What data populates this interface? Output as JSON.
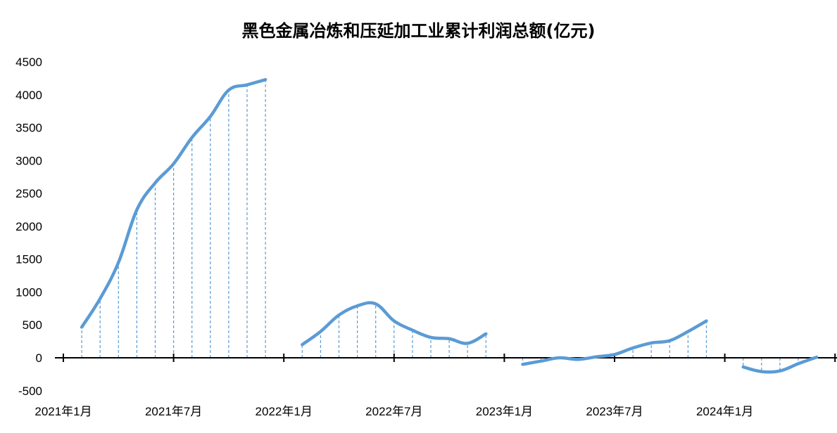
{
  "chart_data": {
    "type": "line",
    "title": "黑色金属冶炼和压延加工业累计利润总额(亿元)",
    "xlabel": "",
    "ylabel": "",
    "ylim": [
      -500,
      4500
    ],
    "yticks": [
      "4500",
      "4000",
      "3500",
      "3000",
      "2500",
      "2000",
      "1500",
      "1000",
      "500",
      "0",
      "-500"
    ],
    "xticks": [
      "2021年1月",
      "2021年7月",
      "2022年1月",
      "2022年7月",
      "2023年1月",
      "2023年7月",
      "2024年1月"
    ],
    "grid": false,
    "legend": "none",
    "line_color": "#5B9BD5",
    "drop_line_color": "#5B9BD5",
    "segments": [
      {
        "year": "2021",
        "months": [
          "2021-02",
          "2021-03",
          "2021-04",
          "2021-05",
          "2021-06",
          "2021-07",
          "2021-08",
          "2021-09",
          "2021-10",
          "2021-11",
          "2021-12"
        ],
        "values": [
          466,
          900,
          1450,
          2250,
          2660,
          2950,
          3350,
          3670,
          4070,
          4150,
          4230
        ]
      },
      {
        "year": "2022",
        "months": [
          "2022-02",
          "2022-03",
          "2022-04",
          "2022-05",
          "2022-06",
          "2022-07",
          "2022-08",
          "2022-09",
          "2022-10",
          "2022-11",
          "2022-12"
        ],
        "values": [
          200,
          400,
          650,
          790,
          820,
          560,
          420,
          310,
          290,
          220,
          365
        ]
      },
      {
        "year": "2023",
        "months": [
          "2023-02",
          "2023-03",
          "2023-04",
          "2023-05",
          "2023-06",
          "2023-07",
          "2023-08",
          "2023-09",
          "2023-10",
          "2023-11",
          "2023-12"
        ],
        "values": [
          -100,
          -50,
          0,
          -25,
          15,
          50,
          150,
          225,
          260,
          400,
          560
        ]
      },
      {
        "year": "2024",
        "months": [
          "2024-02",
          "2024-03",
          "2024-04",
          "2024-05",
          "2024-06"
        ],
        "values": [
          -140,
          -210,
          -200,
          -90,
          10
        ]
      }
    ]
  }
}
